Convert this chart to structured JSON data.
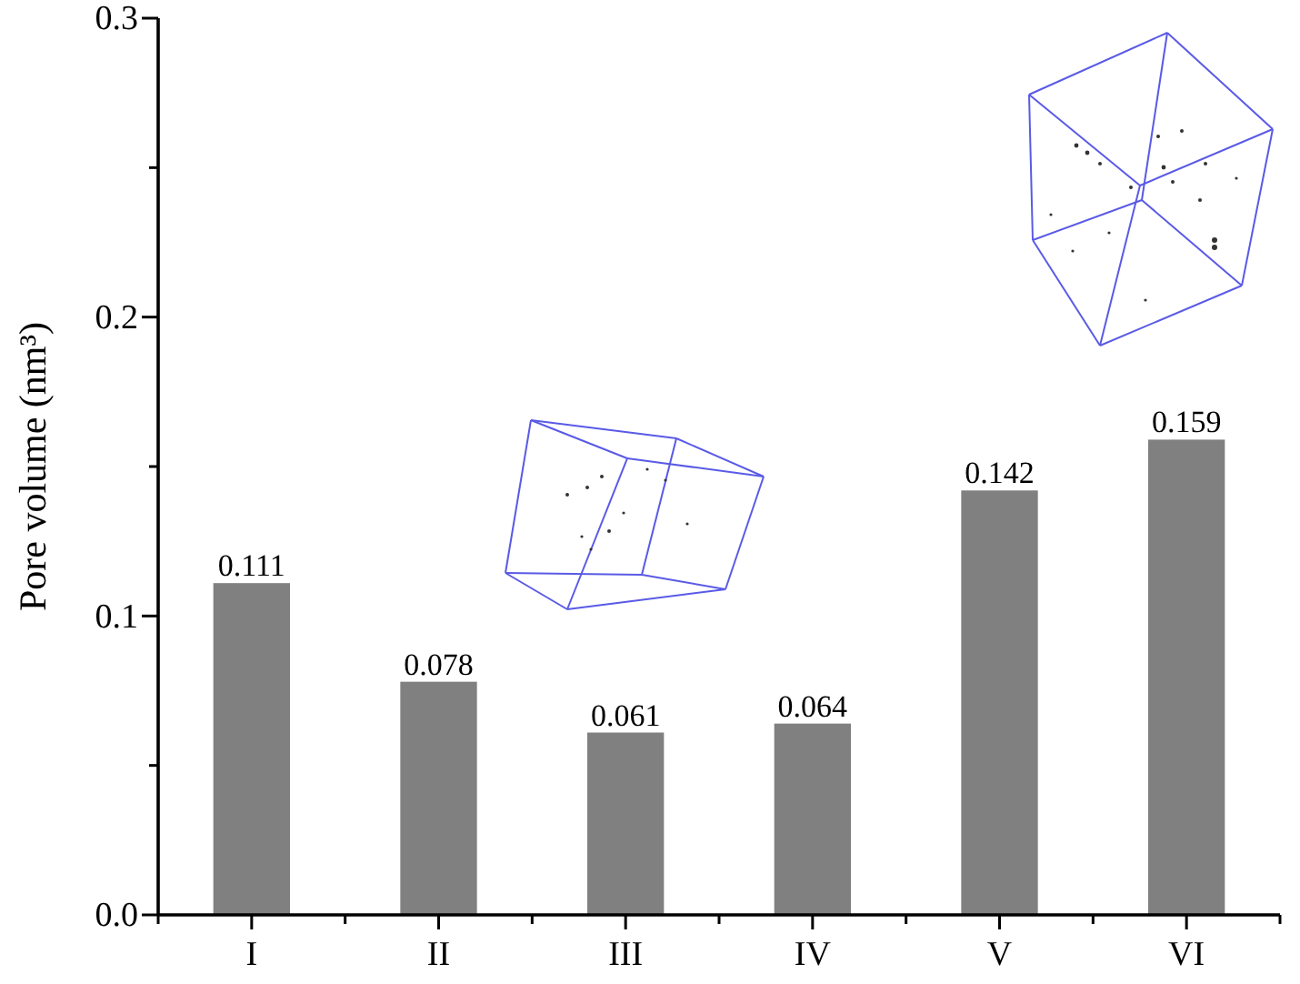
{
  "chart_data": {
    "type": "bar",
    "ylabel": "Pore volume (nm³)",
    "categories": [
      "I",
      "II",
      "III",
      "IV",
      "V",
      "VI"
    ],
    "values": [
      0.111,
      0.078,
      0.061,
      0.064,
      0.142,
      0.159
    ],
    "color": "#808080",
    "ylim": [
      0,
      0.3
    ],
    "yticks": [
      {
        "value": 0,
        "label": "0.0"
      },
      {
        "value": 0.05,
        "label": null
      },
      0.1,
      {
        "value": 0.15,
        "label": null
      },
      0.2,
      {
        "value": 0.25,
        "label": null
      },
      0.3
    ],
    "data_labels": true
  }
}
